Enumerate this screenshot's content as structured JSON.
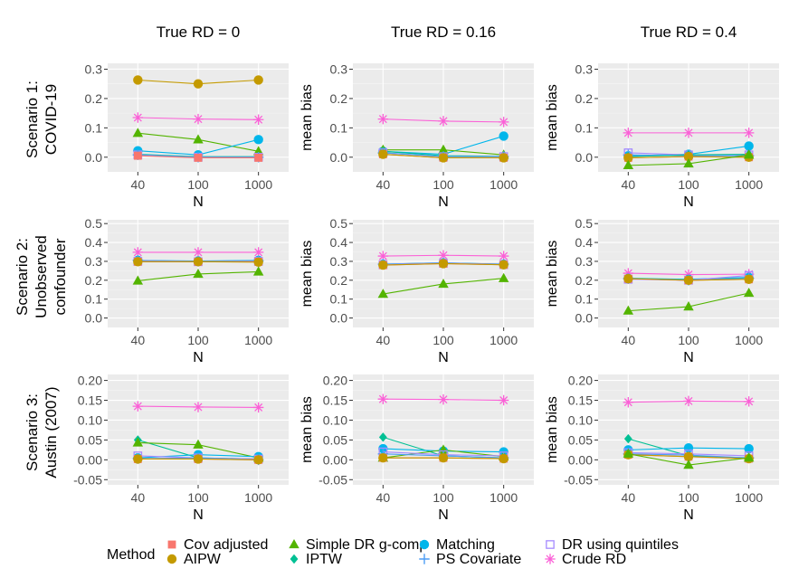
{
  "figure": {
    "col_titles": [
      "True RD = 0",
      "True RD = 0.16",
      "True RD = 0.4"
    ],
    "row_titles": [
      [
        "Scenario 1:",
        "COVID-19"
      ],
      [
        "Scenario 2:",
        "Unobserved",
        "confounder"
      ],
      [
        "Scenario 3:",
        "Austin (2007)"
      ]
    ],
    "xlabel": "N",
    "ylabel": "mean bias",
    "legend_title": "Method"
  },
  "colors": {
    "Cov adjusted": "#F8766D",
    "AIPW": "#C49A00",
    "Simple DR g-comp": "#53B400",
    "IPTW": "#00C094",
    "Matching": "#00B6EB",
    "PS Covariate": "#4E9EF5",
    "DR using quintiles": "#A58AFF",
    "Crude RD": "#FB61D7"
  },
  "legend": [
    {
      "name": "Cov adjusted",
      "shape": "square"
    },
    {
      "name": "AIPW",
      "shape": "circle"
    },
    {
      "name": "Simple DR g-comp",
      "shape": "triangle"
    },
    {
      "name": "IPTW",
      "shape": "diamond"
    },
    {
      "name": "Matching",
      "shape": "circle"
    },
    {
      "name": "PS Covariate",
      "shape": "plus"
    },
    {
      "name": "DR using quintiles",
      "shape": "square-open"
    },
    {
      "name": "Crude RD",
      "shape": "asterisk"
    }
  ],
  "chart_data": [
    {
      "type": "line",
      "facet_row": "Scenario 1: COVID-19",
      "facet_col": "True RD = 0",
      "categories": [
        "40",
        "100",
        "1000"
      ],
      "ylim": [
        -0.05,
        0.32
      ],
      "yticks": [
        "0.0",
        "0.1",
        "0.2",
        "0.3"
      ],
      "ytick_values": [
        0.0,
        0.1,
        0.2,
        0.3
      ],
      "show_ylabel": false,
      "series": [
        {
          "name": "AIPW",
          "values": [
            0.263,
            0.25,
            0.263
          ]
        },
        {
          "name": "Crude RD",
          "values": [
            0.135,
            0.13,
            0.128
          ]
        },
        {
          "name": "Simple DR g-comp",
          "values": [
            0.082,
            0.06,
            0.02
          ]
        },
        {
          "name": "Matching",
          "values": [
            0.022,
            0.008,
            0.06
          ]
        },
        {
          "name": "IPTW",
          "values": [
            0.01,
            0.002,
            0.002
          ]
        },
        {
          "name": "DR using quintiles",
          "values": [
            0.008,
            0.0,
            0.0
          ]
        },
        {
          "name": "PS Covariate",
          "values": [
            0.008,
            0.0,
            0.0
          ]
        },
        {
          "name": "Cov adjusted",
          "values": [
            0.005,
            -0.002,
            -0.002
          ]
        }
      ]
    },
    {
      "type": "line",
      "facet_row": "Scenario 1: COVID-19",
      "facet_col": "True RD = 0.16",
      "categories": [
        "40",
        "100",
        "1000"
      ],
      "ylim": [
        -0.05,
        0.32
      ],
      "yticks": [
        "0.0",
        "0.1",
        "0.2",
        "0.3"
      ],
      "ytick_values": [
        0.0,
        0.1,
        0.2,
        0.3
      ],
      "show_ylabel": true,
      "series": [
        {
          "name": "Crude RD",
          "values": [
            0.13,
            0.123,
            0.12
          ]
        },
        {
          "name": "Matching",
          "values": [
            0.02,
            0.01,
            0.072
          ]
        },
        {
          "name": "Simple DR g-comp",
          "values": [
            0.025,
            0.025,
            0.008
          ]
        },
        {
          "name": "IPTW",
          "values": [
            0.02,
            0.005,
            0.003
          ]
        },
        {
          "name": "DR using quintiles",
          "values": [
            0.015,
            0.002,
            0.002
          ]
        },
        {
          "name": "PS Covariate",
          "values": [
            0.015,
            0.002,
            0.002
          ]
        },
        {
          "name": "Cov adjusted",
          "values": [
            0.01,
            -0.002,
            -0.002
          ]
        },
        {
          "name": "AIPW",
          "values": [
            0.01,
            -0.002,
            -0.002
          ]
        }
      ]
    },
    {
      "type": "line",
      "facet_row": "Scenario 1: COVID-19",
      "facet_col": "True RD = 0.4",
      "categories": [
        "40",
        "100",
        "1000"
      ],
      "ylim": [
        -0.05,
        0.32
      ],
      "yticks": [
        "0.0",
        "0.1",
        "0.2",
        "0.3"
      ],
      "ytick_values": [
        0.0,
        0.1,
        0.2,
        0.3
      ],
      "show_ylabel": true,
      "series": [
        {
          "name": "Crude RD",
          "values": [
            0.083,
            0.083,
            0.083
          ]
        },
        {
          "name": "Matching",
          "values": [
            0.005,
            0.01,
            0.038
          ]
        },
        {
          "name": "DR using quintiles",
          "values": [
            0.015,
            0.008,
            0.008
          ]
        },
        {
          "name": "PS Covariate",
          "values": [
            0.008,
            0.005,
            0.005
          ]
        },
        {
          "name": "IPTW",
          "values": [
            0.002,
            0.008,
            0.01
          ]
        },
        {
          "name": "Cov adjusted",
          "values": [
            -0.002,
            0.002,
            0.0
          ]
        },
        {
          "name": "AIPW",
          "values": [
            -0.002,
            0.002,
            0.0
          ]
        },
        {
          "name": "Simple DR g-comp",
          "values": [
            -0.028,
            -0.022,
            0.008
          ]
        }
      ]
    },
    {
      "type": "line",
      "facet_row": "Scenario 2: Unobserved confounder",
      "facet_col": "True RD = 0",
      "categories": [
        "40",
        "100",
        "1000"
      ],
      "ylim": [
        -0.05,
        0.52
      ],
      "yticks": [
        "0.0",
        "0.1",
        "0.2",
        "0.3",
        "0.4",
        "0.5"
      ],
      "ytick_values": [
        0.0,
        0.1,
        0.2,
        0.3,
        0.4,
        0.5
      ],
      "show_ylabel": false,
      "series": [
        {
          "name": "Crude RD",
          "values": [
            0.348,
            0.348,
            0.348
          ]
        },
        {
          "name": "Matching",
          "values": [
            0.305,
            0.302,
            0.305
          ]
        },
        {
          "name": "IPTW",
          "values": [
            0.302,
            0.3,
            0.302
          ]
        },
        {
          "name": "PS Covariate",
          "values": [
            0.305,
            0.3,
            0.302
          ]
        },
        {
          "name": "DR using quintiles",
          "values": [
            0.3,
            0.298,
            0.3
          ]
        },
        {
          "name": "Cov adjusted",
          "values": [
            0.298,
            0.298,
            0.298
          ]
        },
        {
          "name": "AIPW",
          "values": [
            0.298,
            0.298,
            0.296
          ]
        },
        {
          "name": "Simple DR g-comp",
          "values": [
            0.197,
            0.233,
            0.245
          ]
        }
      ]
    },
    {
      "type": "line",
      "facet_row": "Scenario 2: Unobserved confounder",
      "facet_col": "True RD = 0.16",
      "categories": [
        "40",
        "100",
        "1000"
      ],
      "ylim": [
        -0.05,
        0.52
      ],
      "yticks": [
        "0.0",
        "0.1",
        "0.2",
        "0.3",
        "0.4",
        "0.5"
      ],
      "ytick_values": [
        0.0,
        0.1,
        0.2,
        0.3,
        0.4,
        0.5
      ],
      "show_ylabel": true,
      "series": [
        {
          "name": "Crude RD",
          "values": [
            0.328,
            0.332,
            0.328
          ]
        },
        {
          "name": "Matching",
          "values": [
            0.285,
            0.292,
            0.285
          ]
        },
        {
          "name": "IPTW",
          "values": [
            0.283,
            0.29,
            0.285
          ]
        },
        {
          "name": "PS Covariate",
          "values": [
            0.285,
            0.292,
            0.285
          ]
        },
        {
          "name": "DR using quintiles",
          "values": [
            0.282,
            0.29,
            0.283
          ]
        },
        {
          "name": "Cov adjusted",
          "values": [
            0.28,
            0.288,
            0.282
          ]
        },
        {
          "name": "AIPW",
          "values": [
            0.28,
            0.288,
            0.282
          ]
        },
        {
          "name": "Simple DR g-comp",
          "values": [
            0.127,
            0.18,
            0.21
          ]
        }
      ]
    },
    {
      "type": "line",
      "facet_row": "Scenario 2: Unobserved confounder",
      "facet_col": "True RD = 0.4",
      "categories": [
        "40",
        "100",
        "1000"
      ],
      "ylim": [
        -0.05,
        0.52
      ],
      "yticks": [
        "0.0",
        "0.1",
        "0.2",
        "0.3",
        "0.4",
        "0.5"
      ],
      "ytick_values": [
        0.0,
        0.1,
        0.2,
        0.3,
        0.4,
        0.5
      ],
      "show_ylabel": true,
      "series": [
        {
          "name": "Crude RD",
          "values": [
            0.237,
            0.23,
            0.232
          ]
        },
        {
          "name": "Matching",
          "values": [
            0.21,
            0.205,
            0.215
          ]
        },
        {
          "name": "IPTW",
          "values": [
            0.21,
            0.202,
            0.212
          ]
        },
        {
          "name": "PS Covariate",
          "values": [
            0.208,
            0.2,
            0.21
          ]
        },
        {
          "name": "DR using quintiles",
          "values": [
            0.205,
            0.2,
            0.225
          ]
        },
        {
          "name": "Cov adjusted",
          "values": [
            0.208,
            0.2,
            0.205
          ]
        },
        {
          "name": "AIPW",
          "values": [
            0.208,
            0.2,
            0.205
          ]
        },
        {
          "name": "Simple DR g-comp",
          "values": [
            0.038,
            0.06,
            0.132
          ]
        }
      ]
    },
    {
      "type": "line",
      "facet_row": "Scenario 3: Austin (2007)",
      "facet_col": "True RD = 0",
      "categories": [
        "40",
        "100",
        "1000"
      ],
      "ylim": [
        -0.063,
        0.215
      ],
      "yticks": [
        "-0.05",
        "0.00",
        "0.05",
        "0.10",
        "0.15",
        "0.20"
      ],
      "ytick_values": [
        -0.05,
        0.0,
        0.05,
        0.1,
        0.15,
        0.2
      ],
      "show_ylabel": false,
      "series": [
        {
          "name": "Crude RD",
          "values": [
            0.135,
            0.133,
            0.132
          ]
        },
        {
          "name": "IPTW",
          "values": [
            0.05,
            0.005,
            0.002
          ]
        },
        {
          "name": "Simple DR g-comp",
          "values": [
            0.043,
            0.038,
            0.005
          ]
        },
        {
          "name": "Matching",
          "values": [
            0.005,
            0.013,
            0.008
          ]
        },
        {
          "name": "DR using quintiles",
          "values": [
            0.01,
            0.005,
            0.002
          ]
        },
        {
          "name": "PS Covariate",
          "values": [
            0.003,
            0.005,
            0.0
          ]
        },
        {
          "name": "Cov adjusted",
          "values": [
            0.002,
            0.002,
            0.0
          ]
        },
        {
          "name": "AIPW",
          "values": [
            0.002,
            0.002,
            0.0
          ]
        }
      ]
    },
    {
      "type": "line",
      "facet_row": "Scenario 3: Austin (2007)",
      "facet_col": "True RD = 0.16",
      "categories": [
        "40",
        "100",
        "1000"
      ],
      "ylim": [
        -0.063,
        0.215
      ],
      "yticks": [
        "-0.05",
        "0.00",
        "0.05",
        "0.10",
        "0.15",
        "0.20"
      ],
      "ytick_values": [
        -0.05,
        0.0,
        0.05,
        0.1,
        0.15,
        0.2
      ],
      "show_ylabel": true,
      "series": [
        {
          "name": "Crude RD",
          "values": [
            0.153,
            0.152,
            0.15
          ]
        },
        {
          "name": "IPTW",
          "values": [
            0.057,
            0.01,
            0.005
          ]
        },
        {
          "name": "Matching",
          "values": [
            0.028,
            0.022,
            0.02
          ]
        },
        {
          "name": "Simple DR g-comp",
          "values": [
            0.005,
            0.025,
            0.008
          ]
        },
        {
          "name": "DR using quintiles",
          "values": [
            0.02,
            0.013,
            0.01
          ]
        },
        {
          "name": "PS Covariate",
          "values": [
            0.015,
            0.01,
            0.005
          ]
        },
        {
          "name": "Cov adjusted",
          "values": [
            0.005,
            0.005,
            0.003
          ]
        },
        {
          "name": "AIPW",
          "values": [
            0.005,
            0.005,
            0.003
          ]
        }
      ]
    },
    {
      "type": "line",
      "facet_row": "Scenario 3: Austin (2007)",
      "facet_col": "True RD = 0.4",
      "categories": [
        "40",
        "100",
        "1000"
      ],
      "ylim": [
        -0.063,
        0.215
      ],
      "yticks": [
        "-0.05",
        "0.00",
        "0.05",
        "0.10",
        "0.15",
        "0.20"
      ],
      "ytick_values": [
        -0.05,
        0.0,
        0.05,
        0.1,
        0.15,
        0.2
      ],
      "show_ylabel": true,
      "series": [
        {
          "name": "Crude RD",
          "values": [
            0.145,
            0.148,
            0.147
          ]
        },
        {
          "name": "IPTW",
          "values": [
            0.053,
            0.01,
            0.005
          ]
        },
        {
          "name": "Matching",
          "values": [
            0.025,
            0.03,
            0.028
          ]
        },
        {
          "name": "DR using quintiles",
          "values": [
            0.018,
            0.015,
            0.01
          ]
        },
        {
          "name": "PS Covariate",
          "values": [
            0.015,
            0.012,
            0.005
          ]
        },
        {
          "name": "Cov adjusted",
          "values": [
            0.013,
            0.008,
            0.003
          ]
        },
        {
          "name": "AIPW",
          "values": [
            0.013,
            0.008,
            0.003
          ]
        },
        {
          "name": "Simple DR g-comp",
          "values": [
            0.015,
            -0.013,
            0.005
          ]
        }
      ]
    }
  ]
}
